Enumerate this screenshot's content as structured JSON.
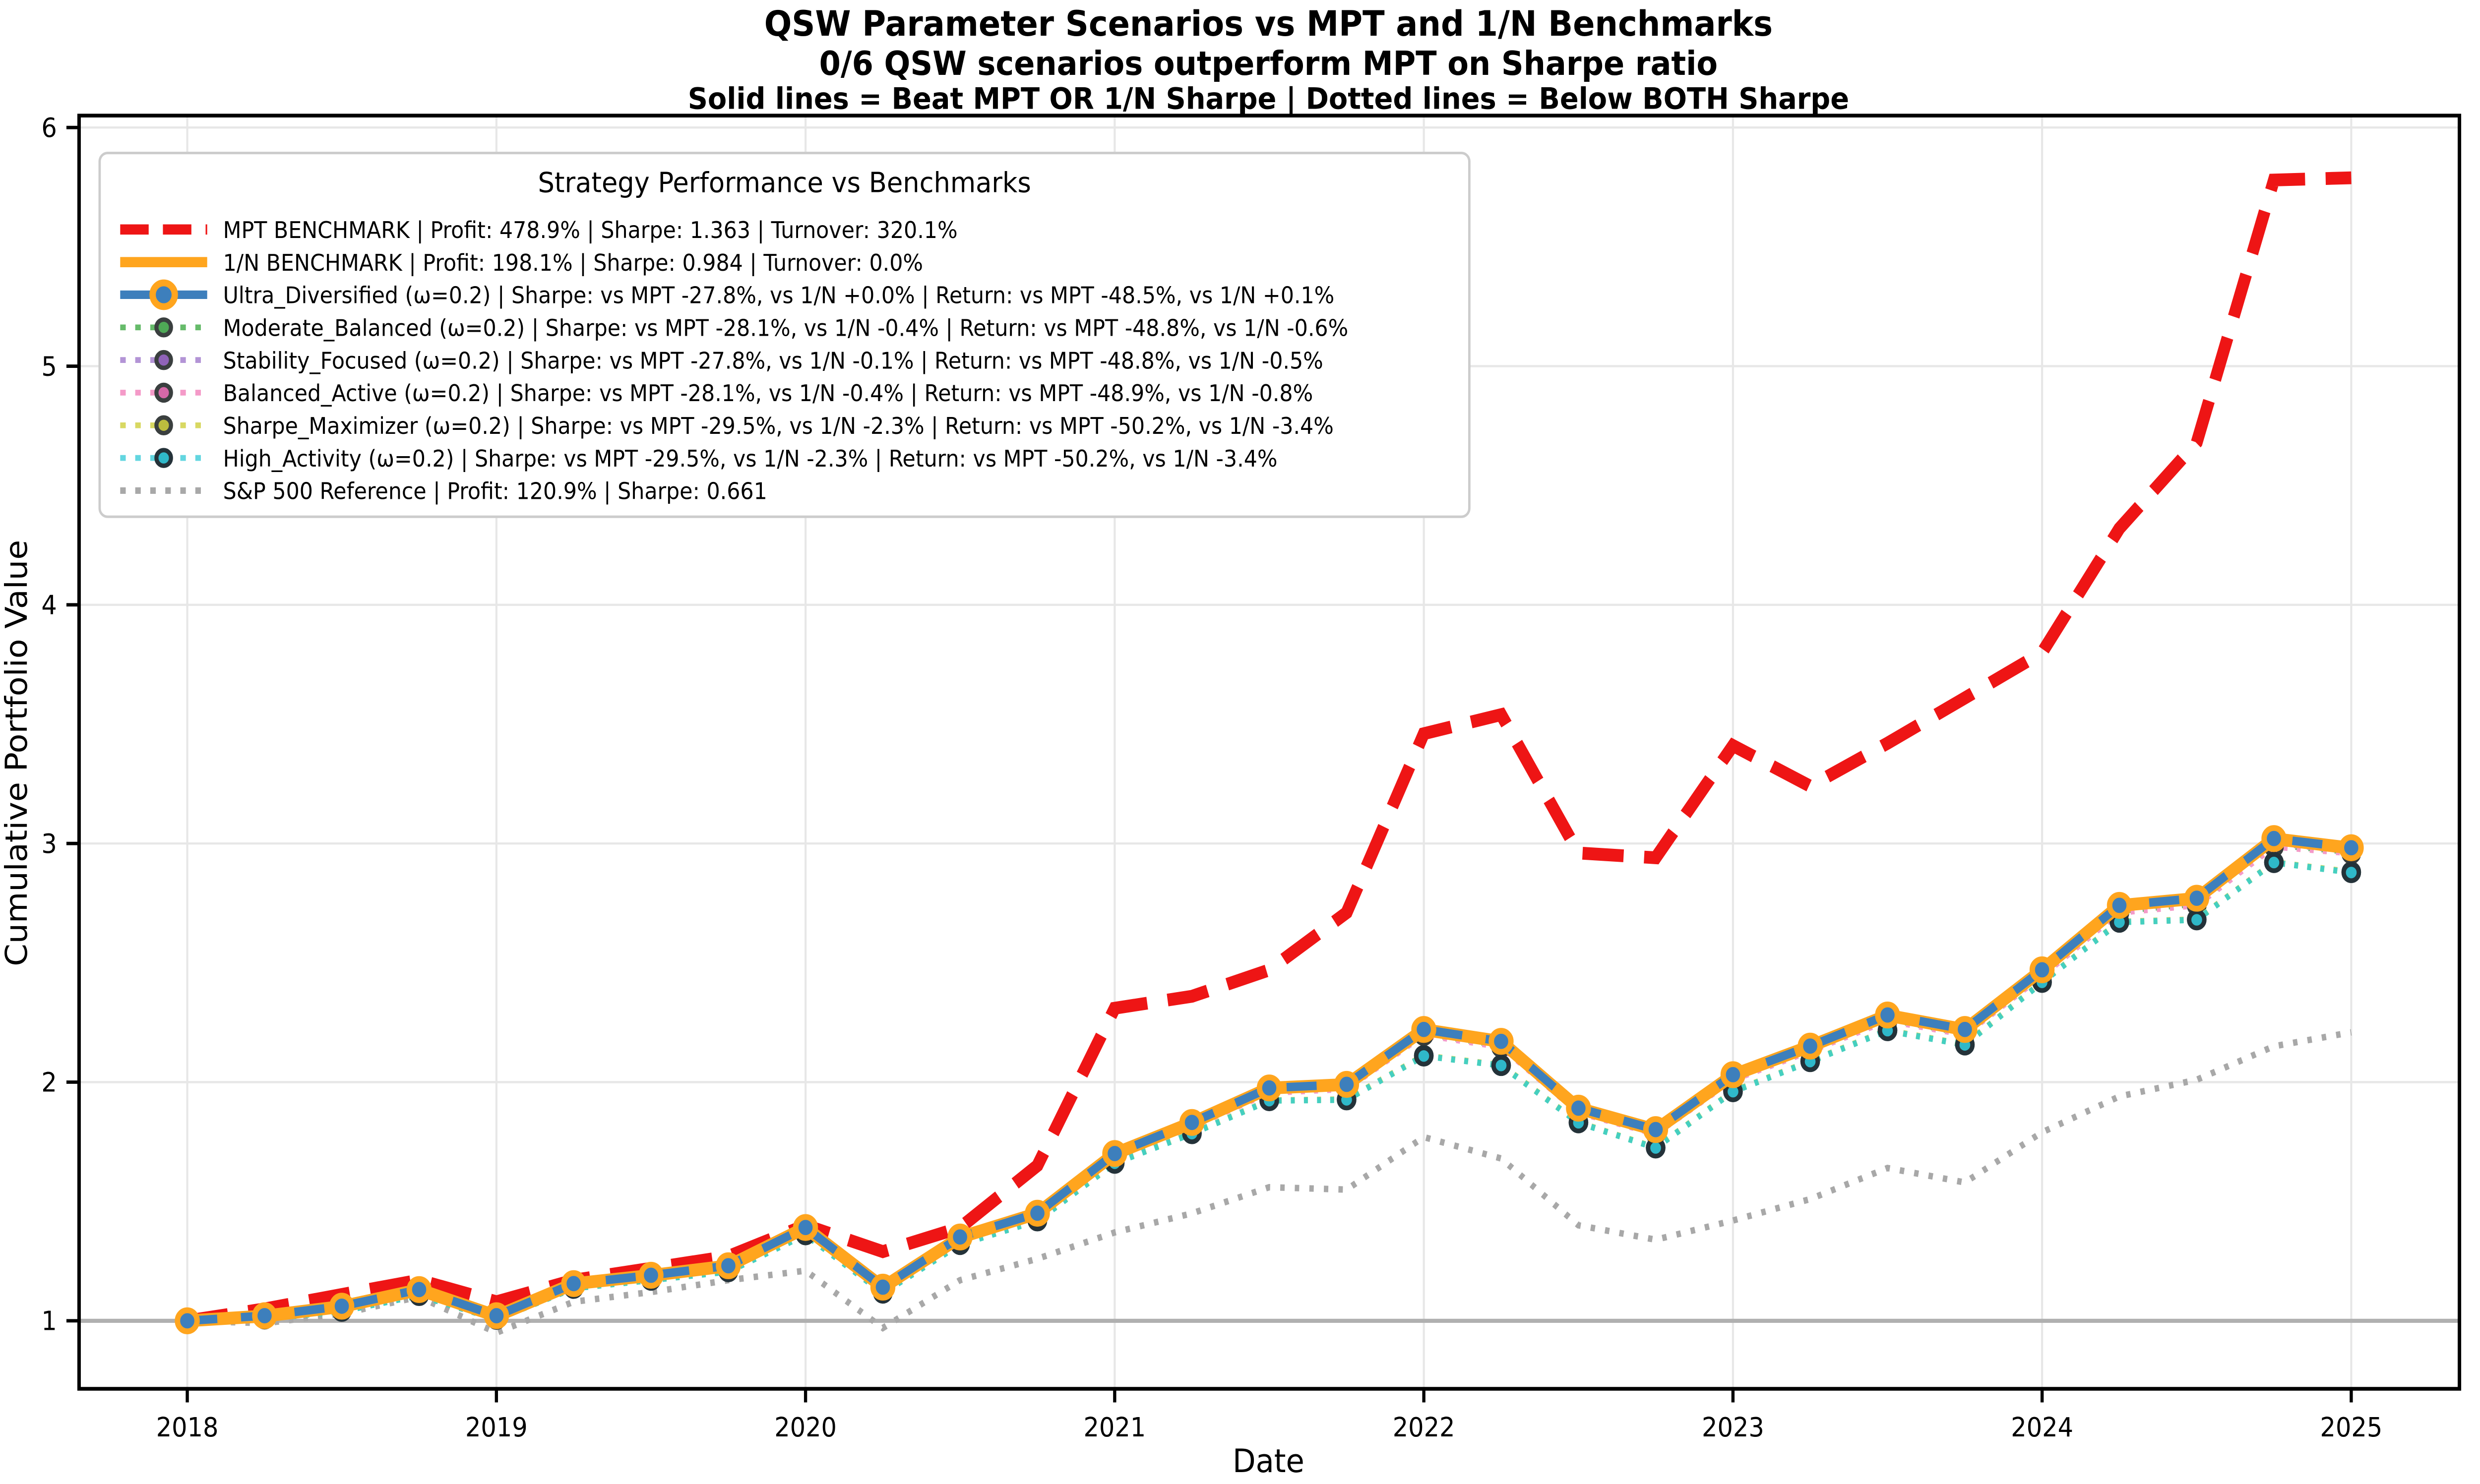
{
  "figure": {
    "title_line1": "QSW Parameter Scenarios vs MPT and 1/N Benchmarks",
    "title_line2": "0/6 QSW scenarios outperform MPT on Sharpe ratio",
    "title_line3": "Solid lines = Beat MPT OR 1/N Sharpe | Dotted lines = Below BOTH Sharpe"
  },
  "axes": {
    "xlabel": "Date",
    "ylabel": "Cumulative Portfolio Value",
    "xtick_labels": [
      "2018",
      "2019",
      "2020",
      "2021",
      "2022",
      "2023",
      "2024",
      "2025"
    ],
    "xtick_values": [
      2018,
      2019,
      2020,
      2021,
      2022,
      2023,
      2024,
      2025
    ],
    "ytick_labels": [
      "1",
      "2",
      "3",
      "4",
      "5",
      "6"
    ],
    "ytick_values": [
      1,
      2,
      3,
      4,
      5,
      6
    ]
  },
  "legend": {
    "title": "Strategy Performance vs Benchmarks",
    "items": [
      {
        "label": "MPT BENCHMARK | Profit: 478.9% | Sharpe: 1.363 | Turnover: 320.1%",
        "color": "#ee1515",
        "line": "dashed",
        "lw": 6,
        "marker": null
      },
      {
        "label": " 1/N BENCHMARK | Profit: 198.1% | Sharpe: 0.984 | Turnover: 0.0%",
        "color": "#ffa51e",
        "line": "solid",
        "lw": 6,
        "marker": null
      },
      {
        "label": "Ultra_Diversified (ω=0.2) | Sharpe: vs MPT -27.8%, vs 1/N +0.0% | Return: vs MPT -48.5%, vs 1/N +0.1%",
        "color": "#3d7fbc",
        "line": "solid",
        "lw": 5,
        "marker": {
          "fill": "#3d7fbc",
          "edge": "#ffa51e",
          "r": 7,
          "sw": 4
        }
      },
      {
        "label": "Moderate_Balanced (ω=0.2) | Sharpe: vs MPT -28.1%, vs 1/N -0.4% | Return: vs MPT -48.8%, vs 1/N -0.6%",
        "color": "#66bb6a",
        "line": "dotted",
        "lw": 3.4,
        "marker": {
          "fill": "#4ea856",
          "edge": "#3a3f3f",
          "r": 4.6,
          "sw": 2.6
        }
      },
      {
        "label": "Stability_Focused (ω=0.2) | Sharpe: vs MPT -27.8%, vs 1/N -0.1% | Return: vs MPT -48.8%, vs 1/N -0.5%",
        "color": "#b394d6",
        "line": "dotted",
        "lw": 3.4,
        "marker": {
          "fill": "#8f63b8",
          "edge": "#3a3f3f",
          "r": 4.6,
          "sw": 2.6
        }
      },
      {
        "label": "Balanced_Active (ω=0.2) | Sharpe: vs MPT -28.1%, vs 1/N -0.4% | Return: vs MPT -48.9%, vs 1/N -0.8%",
        "color": "#f49ac8",
        "line": "dotted",
        "lw": 3.4,
        "marker": {
          "fill": "#d668a8",
          "edge": "#3a3f3f",
          "r": 4.6,
          "sw": 2.6
        }
      },
      {
        "label": "Sharpe_Maximizer (ω=0.2) | Sharpe: vs MPT -29.5%, vs 1/N -2.3% | Return: vs MPT -50.2%, vs 1/N -3.4%",
        "color": "#d8d862",
        "line": "dotted",
        "lw": 3.4,
        "marker": {
          "fill": "#bcbc3e",
          "edge": "#3a3f3f",
          "r": 4.6,
          "sw": 2.6
        }
      },
      {
        "label": "High_Activity (ω=0.2) | Sharpe: vs MPT -29.5%, vs 1/N -2.3% | Return: vs MPT -50.2%, vs 1/N -3.4%",
        "color": "#63d6e0",
        "line": "dotted",
        "lw": 3.4,
        "marker": {
          "fill": "#2fb8c9",
          "edge": "#243239",
          "r": 4.6,
          "sw": 2.6
        }
      },
      {
        "label": "S&P 500 Reference | Profit: 120.9% | Sharpe: 0.661",
        "color": "#a8a8a8",
        "line": "dotted",
        "lw": 3.8,
        "marker": null
      }
    ]
  },
  "chart_data": {
    "type": "line",
    "title": "QSW Parameter Scenarios vs MPT and 1/N Benchmarks",
    "subtitle": "0/6 QSW scenarios outperform MPT on Sharpe ratio",
    "note": "Solid lines = Beat MPT OR 1/N Sharpe | Dotted lines = Below BOTH Sharpe",
    "xlabel": "Date",
    "ylabel": "Cumulative Portfolio Value",
    "xlim": [
      2017.65,
      2025.35
    ],
    "ylim": [
      0.715,
      6.05
    ],
    "grid": true,
    "baseline_y": 1.0,
    "legend_position": "upper left",
    "x_unit": "decimal_year_quarterly",
    "x": [
      2018.0,
      2018.25,
      2018.5,
      2018.75,
      2019.0,
      2019.25,
      2019.5,
      2019.75,
      2020.0,
      2020.25,
      2020.5,
      2020.75,
      2021.0,
      2021.25,
      2021.5,
      2021.75,
      2022.0,
      2022.25,
      2022.5,
      2022.75,
      2023.0,
      2023.25,
      2023.5,
      2023.75,
      2024.0,
      2024.25,
      2024.5,
      2024.75,
      2025.0
    ],
    "series": [
      {
        "name": "S&P 500 Reference",
        "color": "#a8a8a8",
        "style": "dotted-sq",
        "width": 3.8,
        "marker": null,
        "values": [
          1.0,
          0.99,
          1.03,
          1.1,
          0.95,
          1.08,
          1.12,
          1.17,
          1.21,
          0.97,
          1.17,
          1.26,
          1.37,
          1.45,
          1.56,
          1.55,
          1.77,
          1.68,
          1.4,
          1.34,
          1.42,
          1.51,
          1.64,
          1.58,
          1.79,
          1.94,
          2.01,
          2.15,
          2.209
        ]
      },
      {
        "name": "MPT BENCHMARK",
        "color": "#ee1515",
        "style": "dashed",
        "width": 7.5,
        "marker": null,
        "values": [
          1.0,
          1.05,
          1.11,
          1.17,
          1.08,
          1.17,
          1.22,
          1.27,
          1.4,
          1.29,
          1.39,
          1.65,
          2.31,
          2.36,
          2.47,
          2.71,
          3.46,
          3.54,
          2.96,
          2.94,
          3.41,
          3.24,
          3.42,
          3.61,
          3.8,
          4.32,
          4.68,
          5.78,
          5.789
        ]
      },
      {
        "name": "Moderate_Balanced (ω=0.2)",
        "color": "#66bb6a",
        "style": "dotted",
        "width": 3.2,
        "marker": {
          "fill": "#4ea856",
          "edge": "#353b3b",
          "r": 4.8,
          "sw": 2.8
        },
        "values": [
          1.0,
          1.017,
          1.055,
          1.122,
          1.017,
          1.149,
          1.184,
          1.222,
          1.381,
          1.134,
          1.341,
          1.44,
          1.687,
          1.816,
          1.959,
          1.974,
          2.202,
          2.152,
          1.875,
          1.786,
          2.014,
          2.134,
          2.262,
          2.203,
          2.45,
          2.716,
          2.746,
          2.993,
          2.963
        ]
      },
      {
        "name": "Stability_Focused (ω=0.2)",
        "color": "#b394d6",
        "style": "dotted",
        "width": 3.2,
        "marker": {
          "fill": "#8f63b8",
          "edge": "#353b3b",
          "r": 4.8,
          "sw": 2.8
        },
        "values": [
          1.0,
          1.018,
          1.057,
          1.124,
          1.018,
          1.151,
          1.186,
          1.225,
          1.384,
          1.136,
          1.344,
          1.443,
          1.691,
          1.82,
          1.964,
          1.979,
          2.207,
          2.158,
          1.88,
          1.791,
          2.019,
          2.139,
          2.268,
          2.208,
          2.456,
          2.724,
          2.754,
          3.001,
          2.966
        ]
      },
      {
        "name": "Balanced_Active (ω=0.2)",
        "color": "#f49ac8",
        "style": "dotted",
        "width": 3.2,
        "marker": {
          "fill": "#d668a8",
          "edge": "#353b3b",
          "r": 4.8,
          "sw": 2.8
        },
        "values": [
          1.0,
          1.016,
          1.054,
          1.12,
          1.016,
          1.147,
          1.182,
          1.22,
          1.378,
          1.131,
          1.338,
          1.437,
          1.683,
          1.811,
          1.954,
          1.969,
          2.196,
          2.146,
          1.87,
          1.781,
          2.008,
          2.128,
          2.256,
          2.197,
          2.443,
          2.709,
          2.739,
          2.985,
          2.957
        ]
      },
      {
        "name": "Sharpe_Maximizer (ω=0.2)",
        "color": "#d8d862",
        "style": "dotted",
        "width": 3.6,
        "marker": {
          "fill": "#bcbc3e",
          "edge": "#353b3b",
          "r": 4.8,
          "sw": 2.8
        },
        "values": [
          1.0,
          1.01,
          1.042,
          1.108,
          1.008,
          1.138,
          1.172,
          1.208,
          1.362,
          1.118,
          1.322,
          1.421,
          1.662,
          1.786,
          1.924,
          1.928,
          2.112,
          2.072,
          1.832,
          1.726,
          1.962,
          2.088,
          2.218,
          2.158,
          2.42,
          2.672,
          2.682,
          2.922,
          2.881
        ]
      },
      {
        "name": "High_Activity (ω=0.2)",
        "color": "#45cfc0",
        "style": "dotted",
        "width": 3.6,
        "marker": {
          "fill": "#2fb8c9",
          "edge": "#243239",
          "r": 4.8,
          "sw": 2.8
        },
        "values": [
          1.0,
          1.008,
          1.04,
          1.106,
          1.006,
          1.136,
          1.17,
          1.206,
          1.36,
          1.116,
          1.32,
          1.419,
          1.66,
          1.784,
          1.922,
          1.926,
          2.11,
          2.07,
          1.83,
          1.724,
          1.96,
          2.086,
          2.216,
          2.156,
          2.418,
          2.67,
          2.68,
          2.92,
          2.878
        ]
      },
      {
        "name": "1/N BENCHMARK",
        "color": "#ffa51e",
        "style": "solid",
        "width": 7.5,
        "marker": null,
        "values": [
          1.0,
          1.02,
          1.06,
          1.13,
          1.02,
          1.155,
          1.19,
          1.23,
          1.39,
          1.14,
          1.35,
          1.45,
          1.7,
          1.83,
          1.975,
          1.99,
          2.22,
          2.17,
          1.89,
          1.8,
          2.03,
          2.15,
          2.28,
          2.22,
          2.47,
          2.74,
          2.77,
          3.02,
          2.981
        ]
      },
      {
        "name": "Ultra_Diversified (ω=0.2)",
        "color": "#3d7fbc",
        "style": "dash-over",
        "width": 5,
        "marker": {
          "fill": "#3d7fbc",
          "edge": "#ffa51e",
          "r": 6.2,
          "sw": 3.4
        },
        "values": [
          1.0,
          1.021,
          1.061,
          1.131,
          1.021,
          1.156,
          1.191,
          1.231,
          1.391,
          1.141,
          1.351,
          1.451,
          1.701,
          1.831,
          1.976,
          1.991,
          2.221,
          2.171,
          1.891,
          1.801,
          2.031,
          2.151,
          2.281,
          2.221,
          2.471,
          2.741,
          2.771,
          3.021,
          2.982
        ]
      }
    ]
  }
}
